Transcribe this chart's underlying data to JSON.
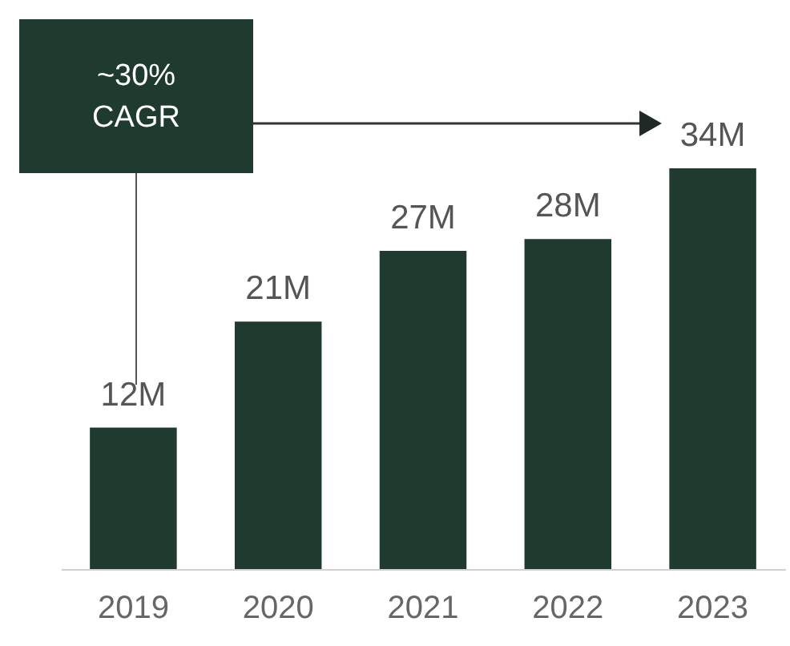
{
  "chart_data": {
    "type": "bar",
    "categories": [
      "2019",
      "2020",
      "2021",
      "2022",
      "2023"
    ],
    "values": [
      12,
      21,
      27,
      28,
      34
    ],
    "value_labels": [
      "12M",
      "21M",
      "27M",
      "28M",
      "34M"
    ],
    "color": "#1f3a2f",
    "annotations": [
      "~30% CAGR"
    ],
    "grid": false
  }
}
